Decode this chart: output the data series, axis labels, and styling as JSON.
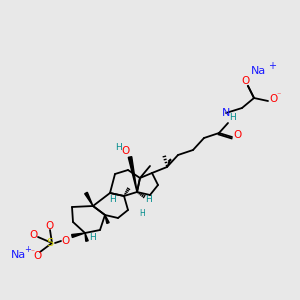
{
  "bg": "#e8e8e8",
  "bc": "#000000",
  "tc": "#008B8B",
  "rc": "#ff0000",
  "bl": "#1a1aff",
  "yc": "#cccc00",
  "Na_label": "Na",
  "plus_label": "+",
  "minus_label": "⁻",
  "H_label": "H",
  "O_label": "O",
  "N_label": "N",
  "S_label": "S"
}
